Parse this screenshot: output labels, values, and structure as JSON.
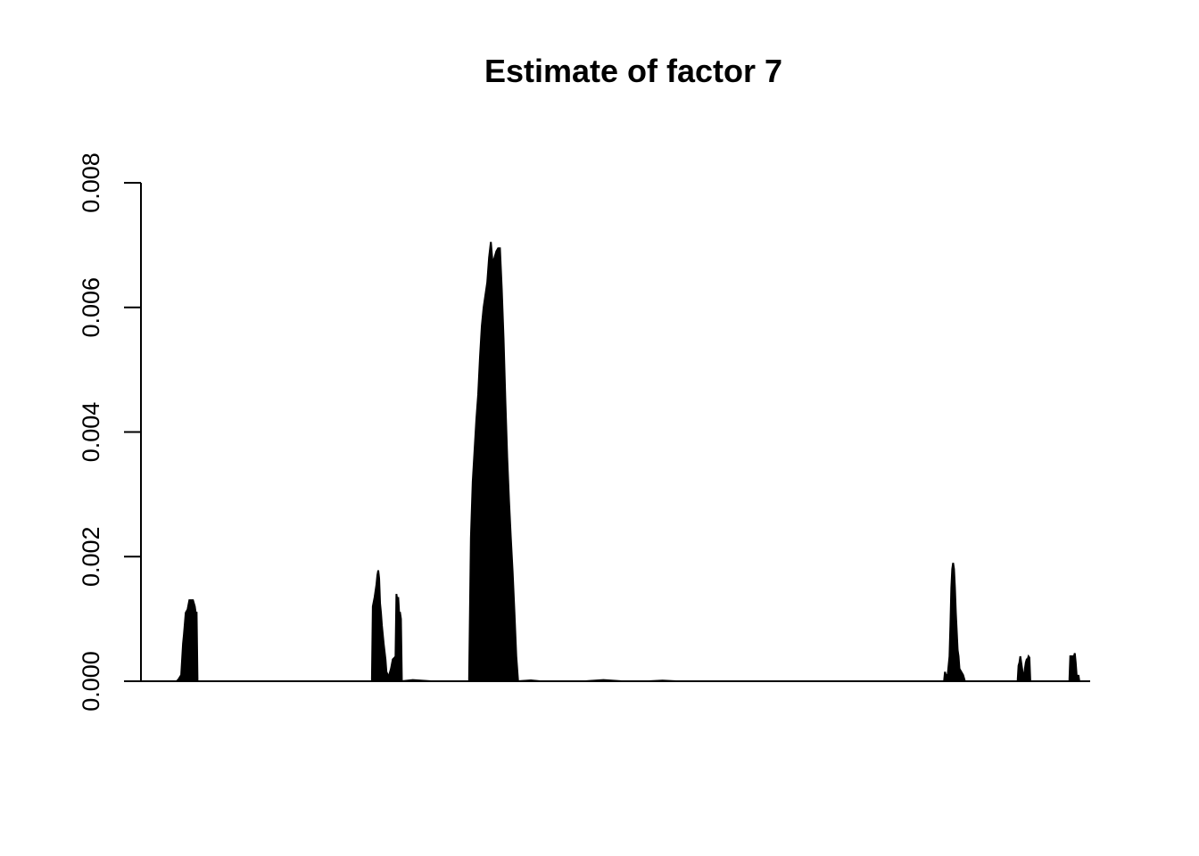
{
  "chart_data": {
    "type": "area",
    "title": "Estimate of factor 7",
    "xlabel": "",
    "ylabel": "",
    "xlim": [
      0,
      1000
    ],
    "ylim": [
      0,
      0.008
    ],
    "y_ticks": [
      0,
      0.002,
      0.004,
      0.006,
      0.008
    ],
    "y_tick_labels": [
      "0.000",
      "0.002",
      "0.004",
      "0.006",
      "0.008"
    ],
    "grid": false,
    "legend": "none",
    "line_color": "#000000",
    "series": [
      {
        "peaks": [
          {
            "x": [
              0,
              2,
              5,
              7,
              8,
              10,
              12,
              14,
              16,
              18,
              20,
              21,
              22,
              23
            ],
            "y": [
              0,
              3e-05,
              0.0001,
              0.0006,
              0.00075,
              0.0011,
              0.00115,
              0.0013,
              0.0013,
              0.0013,
              0.0012,
              0.0011,
              0.0011,
              0
            ]
          },
          {
            "x": [
              215,
              216,
              218,
              220,
              221,
              222,
              223,
              224,
              225,
              226,
              228,
              230,
              231,
              232,
              233,
              234,
              236,
              238,
              240,
              241,
              242,
              243,
              244,
              245,
              246,
              247,
              248
            ],
            "y": [
              0,
              0.0012,
              0.00135,
              0.00155,
              0.0017,
              0.00178,
              0.00165,
              0.00125,
              0.0011,
              0.0009,
              0.0006,
              0.00035,
              0.00015,
              0.00012,
              5e-05,
              0.0001,
              0.0002,
              0.00035,
              0.00038,
              0.0004,
              0.0014,
              0.0013,
              0.00135,
              0.0011,
              0.0011,
              0.001,
              0
            ]
          },
          {
            "x": [
              248,
              260,
              280
            ],
            "y": [
              0,
              2e-05,
              0
            ]
          },
          {
            "x": [
              322,
              324,
              326,
              328,
              330,
              332,
              334,
              336,
              338,
              340,
              342,
              344,
              346,
              348,
              350,
              352,
              354,
              356,
              358,
              360,
              362,
              364,
              366,
              368,
              370,
              372,
              374,
              376
            ],
            "y": [
              0,
              0.0023,
              0.0032,
              0.0037,
              0.0042,
              0.0046,
              0.0052,
              0.0057,
              0.006,
              0.0062,
              0.0064,
              0.0068,
              0.00705,
              0.0067,
              0.0068,
              0.0069,
              0.00695,
              0.00695,
              0.0063,
              0.0055,
              0.0045,
              0.0036,
              0.0029,
              0.0023,
              0.00175,
              0.0011,
              0.0004,
              0
            ]
          },
          {
            "x": [
              376,
              390,
              400
            ],
            "y": [
              0,
              1.5e-05,
              0
            ]
          },
          {
            "x": [
              450,
              470,
              490
            ],
            "y": [
              0,
              2e-05,
              0
            ]
          },
          {
            "x": [
              520,
              535,
              550
            ],
            "y": [
              0,
              1e-05,
              0
            ]
          },
          {
            "x": [
              845,
              846,
              847,
              849,
              851,
              852,
              853,
              854,
              855,
              856,
              857,
              858,
              859,
              860,
              861,
              862,
              864,
              866,
              868
            ],
            "y": [
              0,
              0.00015,
              0.0001,
              0.0001,
              0.0004,
              0.0009,
              0.0015,
              0.0018,
              0.0019,
              0.0018,
              0.0015,
              0.0011,
              0.0008,
              0.0005,
              0.0004,
              0.0002,
              0.00015,
              0.0001,
              0
            ]
          },
          {
            "x": [
              926,
              927,
              928,
              929,
              930,
              931,
              932,
              933,
              934,
              935,
              936,
              937,
              938,
              939,
              940
            ],
            "y": [
              0,
              0.00025,
              0.0003,
              0.0004,
              0.0003,
              0.0002,
              0.0001,
              5e-05,
              0.0002,
              0.0003,
              0.00035,
              0.00035,
              0.0004,
              0.00038,
              0
            ]
          },
          {
            "x": [
              983,
              984,
              986,
              988,
              989,
              990,
              991,
              992,
              993,
              994
            ],
            "y": [
              0,
              0.0004,
              0.0004,
              0.0004,
              0.00045,
              0.0003,
              0.0001,
              5e-05,
              0.0001,
              0
            ]
          }
        ]
      }
    ]
  }
}
